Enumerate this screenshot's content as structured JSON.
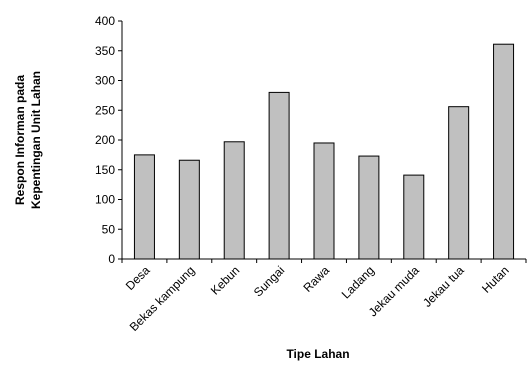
{
  "chart_data": {
    "type": "bar",
    "categories": [
      "Desa",
      "Bekas kampung",
      "Kebun",
      "Sungai",
      "Rawa",
      "Ladang",
      "Jekau muda",
      "Jekau tua",
      "Hutan"
    ],
    "values": [
      175,
      166,
      197,
      280,
      195,
      173,
      141,
      256,
      361
    ],
    "xlabel": "Tipe Lahan",
    "ylabel_line1": "Respon Informan pada",
    "ylabel_line2": "Kepentingan Unit Lahan",
    "ylim": [
      0,
      400
    ],
    "yticks": [
      "0",
      "50",
      "100",
      "150",
      "200",
      "250",
      "300",
      "350",
      "400"
    ],
    "grid": false,
    "legend": "none",
    "bar_color": "#c0c0c0",
    "bar_stroke": "#000000"
  }
}
